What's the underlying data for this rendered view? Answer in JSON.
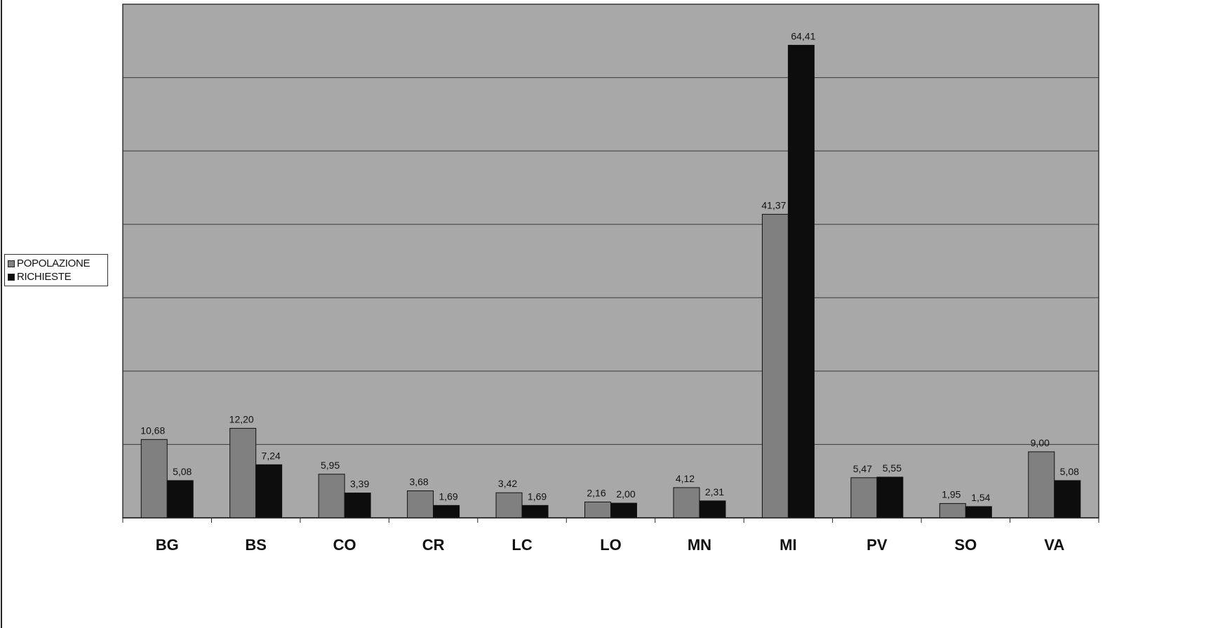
{
  "chart_data": {
    "type": "bar",
    "title": "",
    "xlabel": "",
    "ylabel": "",
    "categories": [
      "BG",
      "BS",
      "CO",
      "CR",
      "LC",
      "LO",
      "MN",
      "MI",
      "PV",
      "SO",
      "VA"
    ],
    "series": [
      {
        "name": "POPOLAZIONE",
        "values": [
          10.68,
          12.2,
          5.95,
          3.68,
          3.42,
          2.16,
          4.12,
          41.37,
          5.47,
          1.95,
          9.0
        ],
        "labels": [
          "10,68",
          "12,20",
          "5,95",
          "3,68",
          "3,42",
          "2,16",
          "4,12",
          "41,37",
          "5,47",
          "1,95",
          "9,00"
        ],
        "color": "#808080"
      },
      {
        "name": "RICHIESTE",
        "values": [
          5.08,
          7.24,
          3.39,
          1.69,
          1.69,
          2.0,
          2.31,
          64.41,
          5.55,
          1.54,
          5.08
        ],
        "labels": [
          "5,08",
          "7,24",
          "3,39",
          "1,69",
          "1,69",
          "2,00",
          "2,31",
          "64,41",
          "5,55",
          "1,54",
          "5,08"
        ],
        "color": "#0d0d0d"
      }
    ],
    "ylim": [
      0,
      70
    ],
    "gridlines": [
      10,
      20,
      30,
      40,
      50,
      60
    ],
    "grid": true,
    "legend_position": "left",
    "plot_background": "#a8a8a8"
  }
}
